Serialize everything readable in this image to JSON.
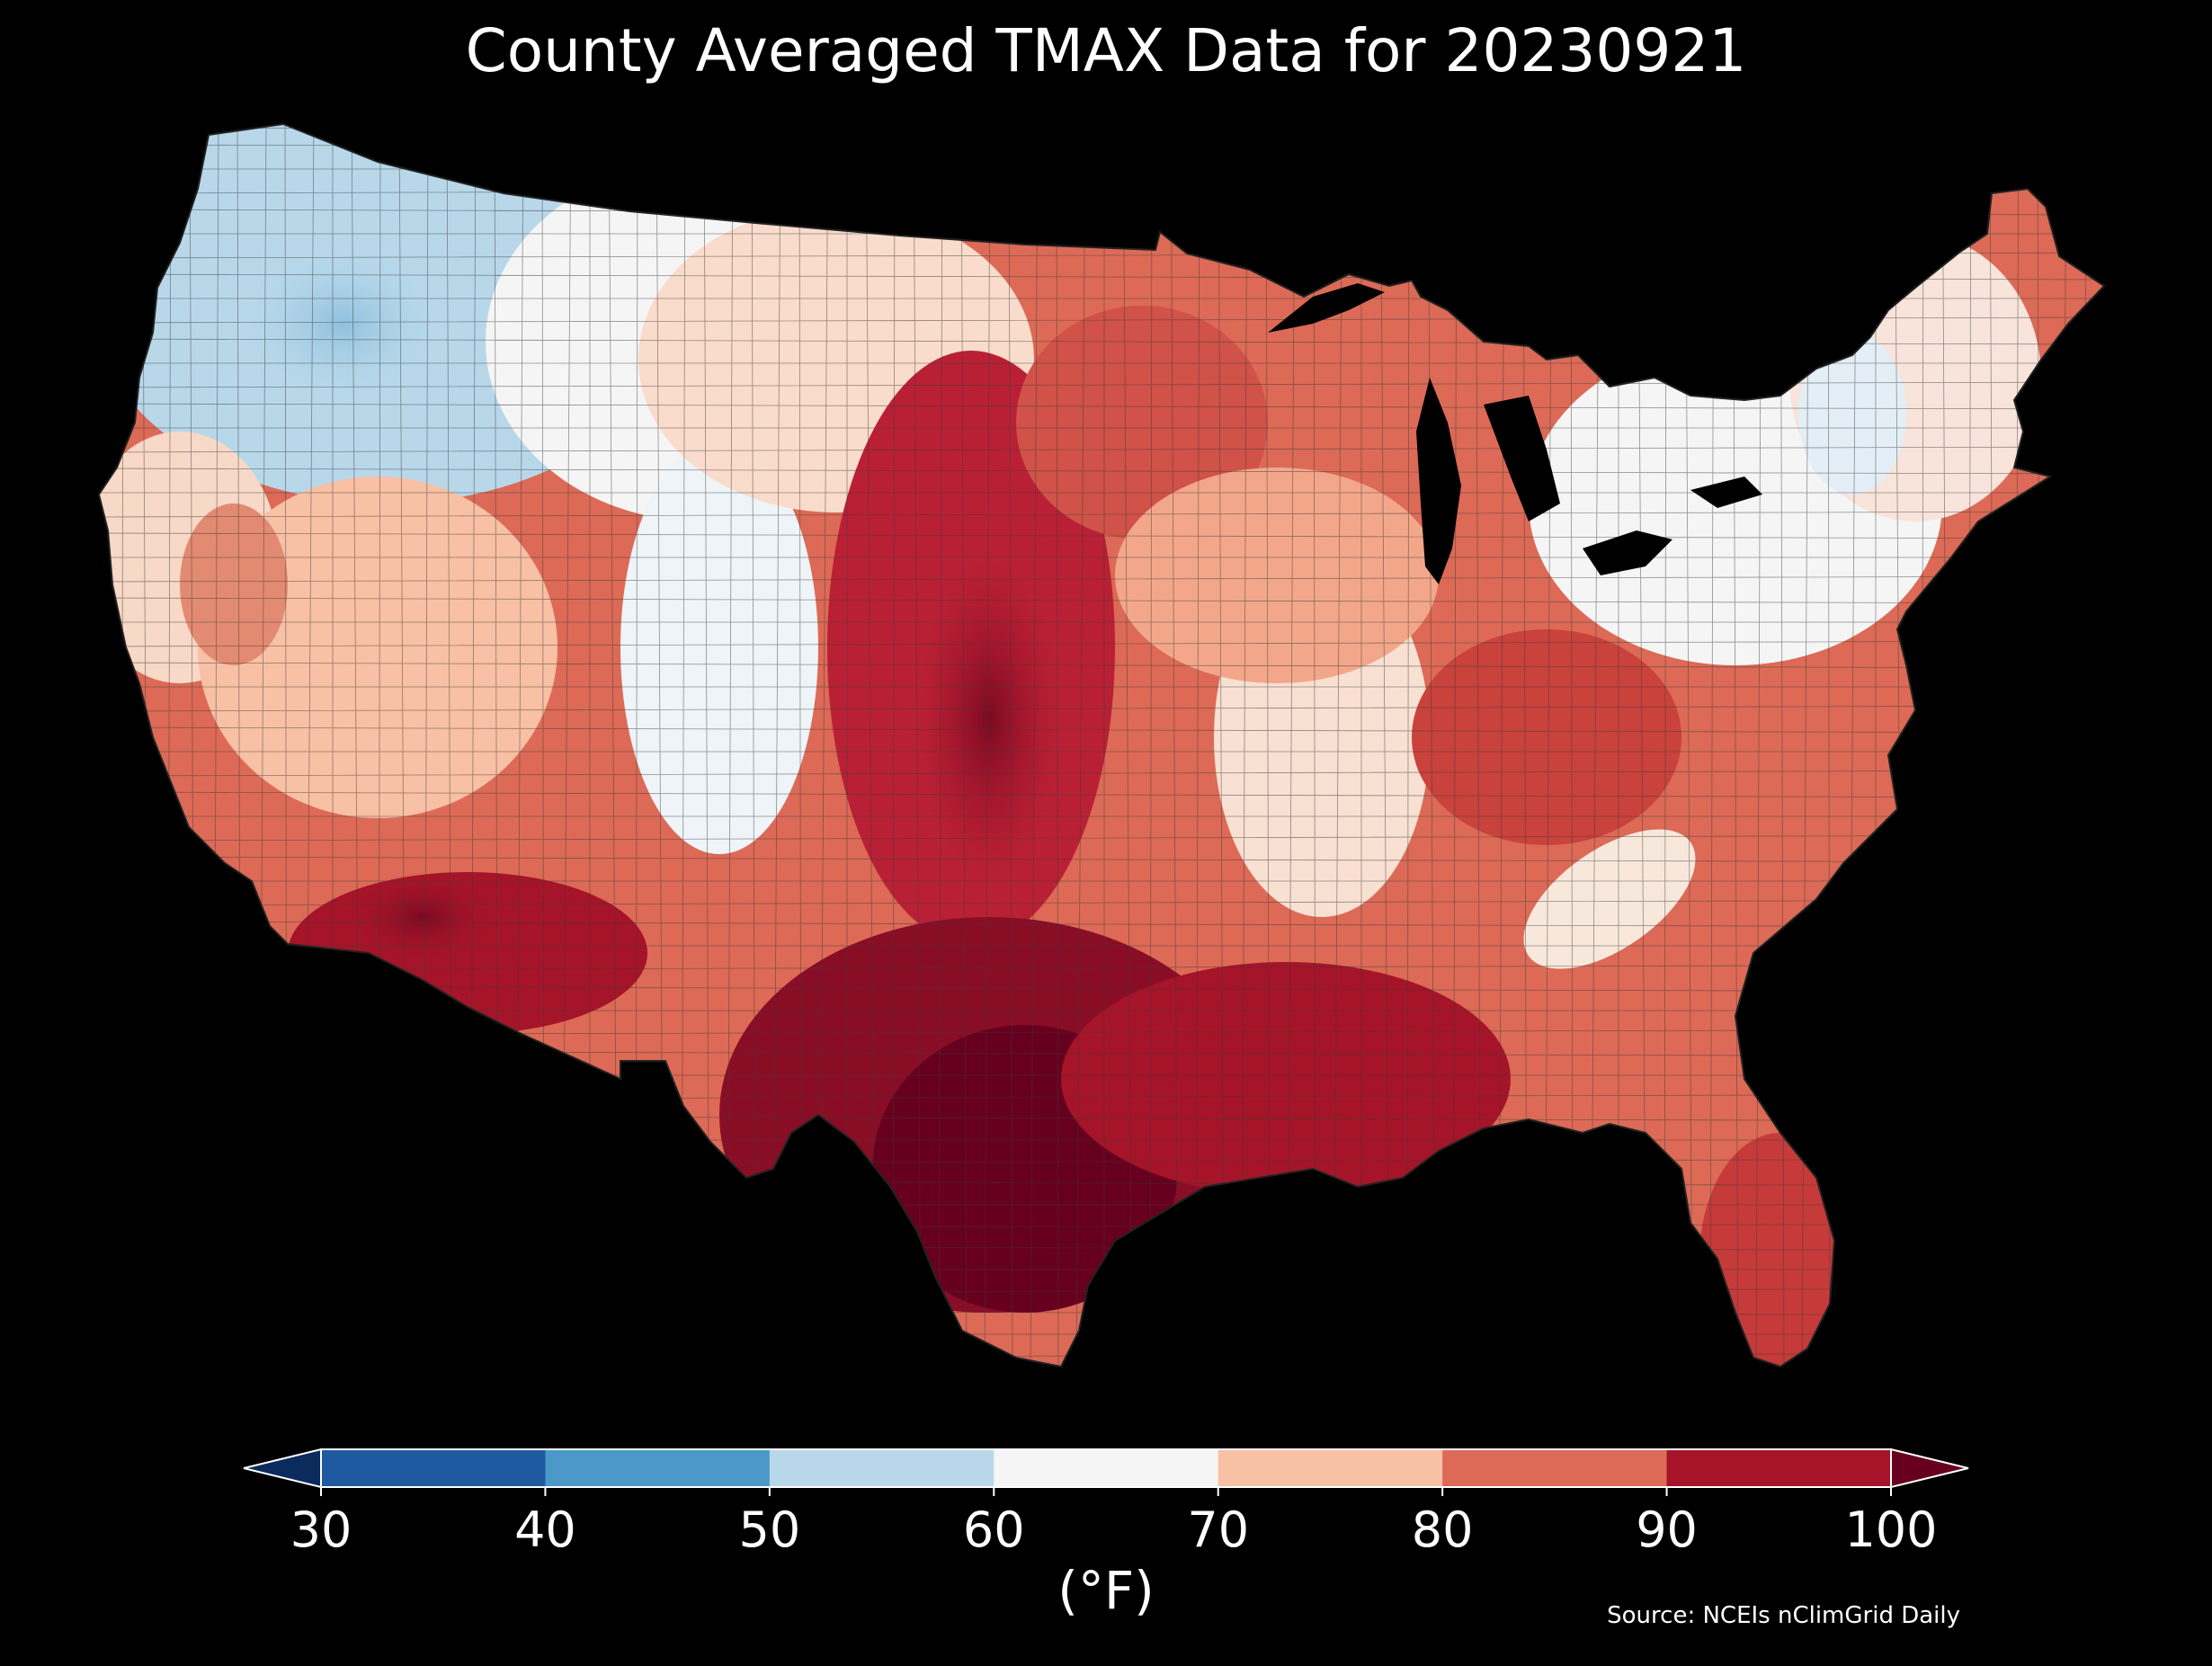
{
  "title": "County Averaged TMAX Data for 20230921",
  "colorbar": {
    "unit": "(°F)",
    "ticks": [
      "30",
      "40",
      "50",
      "60",
      "70",
      "80",
      "90",
      "100"
    ],
    "bins": [
      {
        "range": "<30",
        "color": "#0b2b5c"
      },
      {
        "range": "30-40",
        "color": "#1f5aa0"
      },
      {
        "range": "40-50",
        "color": "#4a99c8"
      },
      {
        "range": "50-60",
        "color": "#b8d8ea"
      },
      {
        "range": "60-70",
        "color": "#f5f5f5"
      },
      {
        "range": "70-80",
        "color": "#f8c0a4"
      },
      {
        "range": "80-90",
        "color": "#dc6a56"
      },
      {
        "range": "90-100",
        "color": "#a51428"
      },
      {
        "range": ">100",
        "color": "#67001f"
      }
    ]
  },
  "source": "Source: NCEIs nClimGrid Daily",
  "map": {
    "region": "Contiguous United States counties",
    "background_color": "#000000",
    "border_color": "#333333"
  }
}
